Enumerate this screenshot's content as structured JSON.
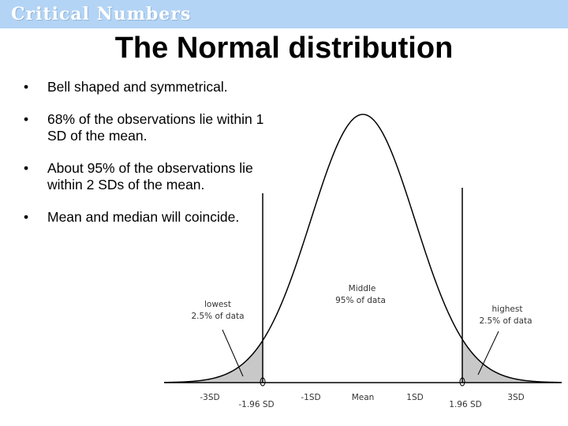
{
  "header": {
    "banner": "Critical Numbers",
    "title": "The Normal distribution"
  },
  "bullets": [
    "Bell shaped and symmetrical.",
    "68% of the observations lie within 1 SD of the mean.",
    "About 95% of the observations lie within 2 SDs of the mean.",
    "Mean and median will coincide."
  ],
  "bullet_marker": "•",
  "diagram": {
    "annotations": {
      "lowest": [
        "lowest",
        "2.5% of data"
      ],
      "middle": [
        "Middle",
        "95% of data"
      ],
      "highest": [
        "highest",
        "2.5% of data"
      ]
    },
    "axis_labels_top": [
      "-3SD",
      "-1SD",
      "Mean",
      "1SD",
      "3SD"
    ],
    "axis_labels_bottom": [
      "-1.96 SD",
      "1.96 SD"
    ]
  }
}
